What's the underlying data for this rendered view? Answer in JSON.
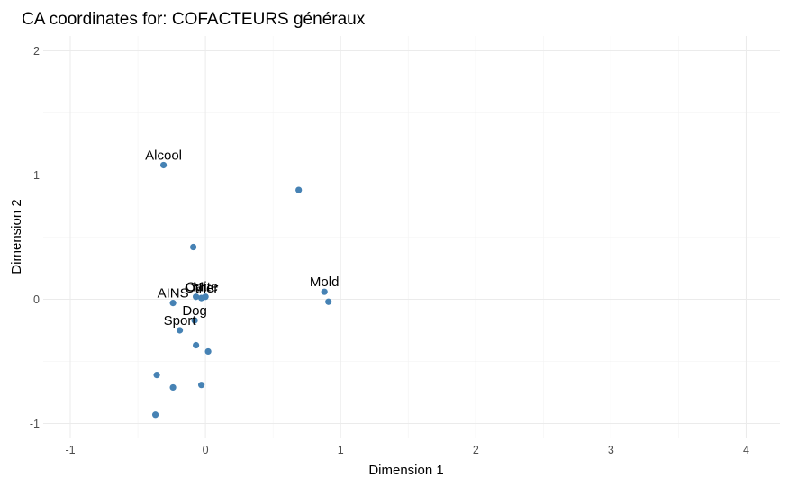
{
  "chart_data": {
    "type": "scatter",
    "title": "CA coordinates for: COFACTEURS généraux",
    "xlabel": "Dimension 1",
    "ylabel": "Dimension 2",
    "xlim": [
      -1.2,
      4.25
    ],
    "ylim": [
      -1.12,
      2.12
    ],
    "xticks": [
      -1,
      0,
      1,
      2,
      3,
      4
    ],
    "yticks": [
      -1,
      0,
      1,
      2
    ],
    "grid": true,
    "point_color": "#4682b4",
    "points": [
      {
        "x": -0.31,
        "y": 1.08,
        "label": "Alcool"
      },
      {
        "x": 0.69,
        "y": 0.88,
        "label": ""
      },
      {
        "x": -0.09,
        "y": 0.42,
        "label": ""
      },
      {
        "x": 0.88,
        "y": 0.06,
        "label": "Mold"
      },
      {
        "x": 0.91,
        "y": -0.02,
        "label": ""
      },
      {
        "x": -0.07,
        "y": 0.02,
        "label": "Cat"
      },
      {
        "x": 0.0,
        "y": 0.02,
        "label": "Mite"
      },
      {
        "x": -0.03,
        "y": 0.01,
        "label": "Other"
      },
      {
        "x": -0.24,
        "y": -0.03,
        "label": "AINS"
      },
      {
        "x": -0.08,
        "y": -0.17,
        "label": "Dog"
      },
      {
        "x": -0.19,
        "y": -0.25,
        "label": "Sport"
      },
      {
        "x": -0.07,
        "y": -0.37,
        "label": ""
      },
      {
        "x": 0.02,
        "y": -0.42,
        "label": ""
      },
      {
        "x": -0.36,
        "y": -0.61,
        "label": ""
      },
      {
        "x": -0.24,
        "y": -0.71,
        "label": ""
      },
      {
        "x": -0.03,
        "y": -0.69,
        "label": ""
      },
      {
        "x": -0.37,
        "y": -0.93,
        "label": ""
      }
    ]
  }
}
